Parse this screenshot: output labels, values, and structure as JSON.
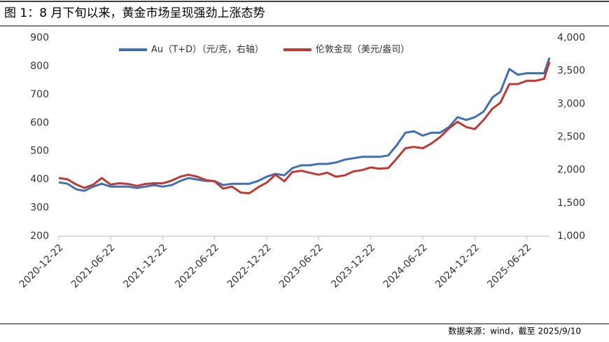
{
  "chart_data": {
    "type": "line",
    "title": "图 1：8 月下旬以来，黄金市场呈现强劲上涨态势",
    "source": "数据来源：wind，截至 2025/9/10",
    "x": [
      "2020-12-22",
      "2021-01-22",
      "2021-02-22",
      "2021-03-22",
      "2021-04-22",
      "2021-05-22",
      "2021-06-22",
      "2021-07-22",
      "2021-08-22",
      "2021-09-22",
      "2021-10-22",
      "2021-11-22",
      "2021-12-22",
      "2022-01-22",
      "2022-02-22",
      "2022-03-22",
      "2022-04-22",
      "2022-05-22",
      "2022-06-22",
      "2022-07-22",
      "2022-08-22",
      "2022-09-22",
      "2022-10-22",
      "2022-11-22",
      "2022-12-22",
      "2023-01-22",
      "2023-02-22",
      "2023-03-22",
      "2023-04-22",
      "2023-05-22",
      "2023-06-22",
      "2023-07-22",
      "2023-08-22",
      "2023-09-22",
      "2023-10-22",
      "2023-11-22",
      "2023-12-22",
      "2024-01-22",
      "2024-02-22",
      "2024-03-22",
      "2024-04-22",
      "2024-05-22",
      "2024-06-22",
      "2024-07-22",
      "2024-08-22",
      "2024-09-22",
      "2024-10-22",
      "2024-11-22",
      "2024-12-22",
      "2025-01-22",
      "2025-02-22",
      "2025-03-22",
      "2025-04-22",
      "2025-05-22",
      "2025-06-22",
      "2025-07-22",
      "2025-08-22",
      "2025-09-10"
    ],
    "series": [
      {
        "name": "Au（T+D）（元/克，右轴）",
        "color": "#3f6fb5",
        "axis": "y",
        "values": [
          390,
          385,
          365,
          360,
          375,
          385,
          375,
          375,
          375,
          370,
          375,
          380,
          375,
          380,
          395,
          405,
          400,
          395,
          395,
          380,
          385,
          385,
          385,
          395,
          410,
          420,
          415,
          440,
          450,
          450,
          455,
          455,
          460,
          470,
          475,
          480,
          480,
          480,
          485,
          520,
          565,
          570,
          555,
          565,
          565,
          585,
          620,
          610,
          620,
          640,
          690,
          710,
          790,
          770,
          775,
          775,
          775,
          830
        ]
      },
      {
        "name": "伦敦金现（美元/盎司）",
        "color": "#be3a34",
        "axis": "y2",
        "values": [
          1880,
          1860,
          1780,
          1730,
          1780,
          1880,
          1780,
          1800,
          1790,
          1760,
          1790,
          1800,
          1800,
          1840,
          1900,
          1930,
          1900,
          1850,
          1830,
          1720,
          1750,
          1660,
          1650,
          1740,
          1810,
          1930,
          1830,
          1970,
          1990,
          1960,
          1930,
          1960,
          1900,
          1920,
          1980,
          2000,
          2040,
          2020,
          2030,
          2170,
          2330,
          2350,
          2330,
          2400,
          2500,
          2630,
          2730,
          2650,
          2620,
          2760,
          2930,
          3020,
          3300,
          3300,
          3350,
          3350,
          3380,
          3640
        ]
      }
    ],
    "xlim": [
      "2020-12-22",
      "2025-09-10"
    ],
    "xticks": [
      "2020-12-22",
      "2021-06-22",
      "2021-12-22",
      "2022-06-22",
      "2022-12-22",
      "2023-06-22",
      "2023-12-22",
      "2024-06-22",
      "2024-12-22",
      "2025-06-22"
    ],
    "ylim": [
      200,
      900
    ],
    "yticks": [
      200,
      300,
      400,
      500,
      600,
      700,
      800,
      900
    ],
    "y2lim": [
      1000,
      4000
    ],
    "y2ticks": [
      {
        "value": 1000,
        "label": "1,000"
      },
      {
        "value": 1500,
        "label": "1,500"
      },
      {
        "value": 2000,
        "label": "2,000"
      },
      {
        "value": 2500,
        "label": "2,500"
      },
      {
        "value": 3000,
        "label": "3,000"
      },
      {
        "value": 3500,
        "label": "3,500"
      },
      {
        "value": 4000,
        "label": "4,000"
      }
    ]
  }
}
